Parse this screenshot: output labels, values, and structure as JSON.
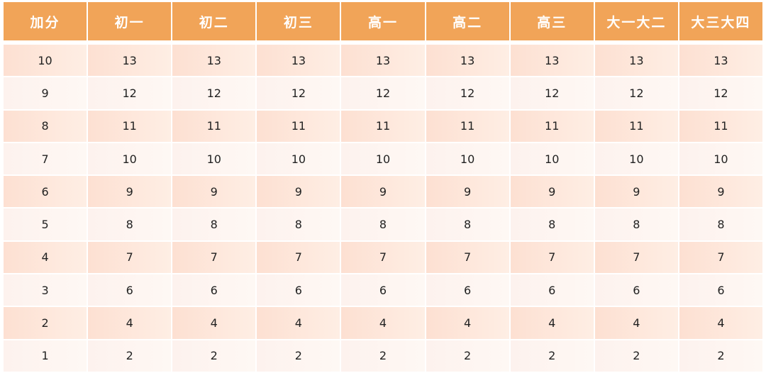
{
  "table": {
    "headers": [
      "加分",
      "初一",
      "初二",
      "初三",
      "高一",
      "高二",
      "高三",
      "大一大二",
      "大三大四"
    ],
    "rows": [
      [
        "10",
        "13",
        "13",
        "13",
        "13",
        "13",
        "13",
        "13",
        "13"
      ],
      [
        "9",
        "12",
        "12",
        "12",
        "12",
        "12",
        "12",
        "12",
        "12"
      ],
      [
        "8",
        "11",
        "11",
        "11",
        "11",
        "11",
        "11",
        "11",
        "11"
      ],
      [
        "7",
        "10",
        "10",
        "10",
        "10",
        "10",
        "10",
        "10",
        "10"
      ],
      [
        "6",
        "9",
        "9",
        "9",
        "9",
        "9",
        "9",
        "9",
        "9"
      ],
      [
        "5",
        "8",
        "8",
        "8",
        "8",
        "8",
        "8",
        "8",
        "8"
      ],
      [
        "4",
        "7",
        "7",
        "7",
        "7",
        "7",
        "7",
        "7",
        "7"
      ],
      [
        "3",
        "6",
        "6",
        "6",
        "6",
        "6",
        "6",
        "6",
        "6"
      ],
      [
        "2",
        "4",
        "4",
        "4",
        "4",
        "4",
        "4",
        "4",
        "4"
      ],
      [
        "1",
        "2",
        "2",
        "2",
        "2",
        "2",
        "2",
        "2",
        "2"
      ]
    ]
  },
  "colors": {
    "header": "#f1a458",
    "row_dark": "#fde0d2",
    "row_light": "#fdf2ee"
  }
}
